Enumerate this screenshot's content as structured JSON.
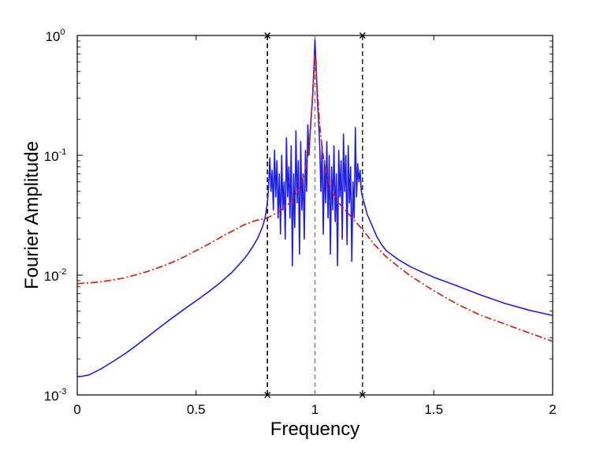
{
  "chart_data": {
    "type": "line",
    "title": "",
    "xlabel": "Frequency",
    "ylabel": "Fourier Amplitude",
    "xlim": [
      0,
      2
    ],
    "ylim": [
      0.001,
      1
    ],
    "yscale": "log",
    "grid": false,
    "legend": "none",
    "x_ticks": [
      {
        "value": 0,
        "label": "0"
      },
      {
        "value": 0.5,
        "label": "0.5"
      },
      {
        "value": 1,
        "label": "1"
      },
      {
        "value": 1.5,
        "label": "1.5"
      },
      {
        "value": 2,
        "label": "2"
      }
    ],
    "y_ticks": [
      {
        "value": 0.001,
        "base": "10",
        "exp": "-3"
      },
      {
        "value": 0.01,
        "base": "10",
        "exp": "-2"
      },
      {
        "value": 0.1,
        "base": "10",
        "exp": "-1"
      },
      {
        "value": 1,
        "base": "10",
        "exp": "0"
      }
    ],
    "series": [
      {
        "style": "solid",
        "color": "#1f1fe6",
        "x": [
          0,
          0.02,
          0.05,
          0.1,
          0.15,
          0.2,
          0.25,
          0.3,
          0.35,
          0.4,
          0.45,
          0.5,
          0.55,
          0.6,
          0.65,
          0.7,
          0.72,
          0.74,
          0.76,
          0.78,
          0.79,
          0.8,
          0.805,
          0.81,
          0.815,
          0.82,
          0.825,
          0.83,
          0.835,
          0.84,
          0.845,
          0.85,
          0.855,
          0.86,
          0.865,
          0.87,
          0.875,
          0.88,
          0.885,
          0.89,
          0.895,
          0.9,
          0.905,
          0.91,
          0.915,
          0.92,
          0.925,
          0.93,
          0.935,
          0.94,
          0.945,
          0.95,
          0.955,
          0.96,
          0.965,
          0.97,
          0.975,
          0.98,
          0.985,
          0.99,
          0.995,
          1.0,
          1.005,
          1.01,
          1.015,
          1.02,
          1.025,
          1.03,
          1.035,
          1.04,
          1.045,
          1.05,
          1.055,
          1.06,
          1.065,
          1.07,
          1.075,
          1.08,
          1.085,
          1.09,
          1.095,
          1.1,
          1.105,
          1.11,
          1.115,
          1.12,
          1.125,
          1.13,
          1.135,
          1.14,
          1.145,
          1.15,
          1.155,
          1.16,
          1.165,
          1.17,
          1.175,
          1.18,
          1.185,
          1.19,
          1.195,
          1.2,
          1.21,
          1.22,
          1.24,
          1.26,
          1.28,
          1.3,
          1.35,
          1.4,
          1.45,
          1.5,
          1.6,
          1.7,
          1.8,
          1.9,
          2.0
        ],
        "y": [
          0.00142,
          0.00143,
          0.00147,
          0.00165,
          0.0019,
          0.0022,
          0.0026,
          0.0031,
          0.0037,
          0.0044,
          0.0052,
          0.0061,
          0.0072,
          0.0086,
          0.0105,
          0.0135,
          0.0152,
          0.0175,
          0.0205,
          0.0255,
          0.03,
          0.04,
          0.055,
          0.095,
          0.05,
          0.075,
          0.035,
          0.11,
          0.045,
          0.09,
          0.03,
          0.07,
          0.022,
          0.1,
          0.035,
          0.06,
          0.02,
          0.14,
          0.045,
          0.08,
          0.03,
          0.12,
          0.012,
          0.07,
          0.025,
          0.16,
          0.04,
          0.09,
          0.015,
          0.13,
          0.035,
          0.07,
          0.02,
          0.11,
          0.05,
          0.18,
          0.1,
          0.16,
          0.22,
          0.3,
          0.5,
          0.92,
          0.55,
          0.3,
          0.2,
          0.12,
          0.05,
          0.12,
          0.022,
          0.09,
          0.04,
          0.13,
          0.03,
          0.1,
          0.015,
          0.08,
          0.035,
          0.12,
          0.028,
          0.07,
          0.012,
          0.11,
          0.045,
          0.09,
          0.02,
          0.15,
          0.05,
          0.1,
          0.018,
          0.12,
          0.04,
          0.08,
          0.013,
          0.06,
          0.03,
          0.17,
          0.045,
          0.085,
          0.06,
          0.075,
          0.05,
          0.045,
          0.038,
          0.032,
          0.026,
          0.021,
          0.018,
          0.016,
          0.0135,
          0.0118,
          0.0106,
          0.0096,
          0.0081,
          0.0068,
          0.0058,
          0.0051,
          0.0046
        ]
      },
      {
        "style": "dash-dot",
        "color": "#d6201b",
        "x": [
          0,
          0.05,
          0.1,
          0.15,
          0.2,
          0.25,
          0.3,
          0.35,
          0.4,
          0.45,
          0.5,
          0.55,
          0.6,
          0.65,
          0.7,
          0.75,
          0.8,
          0.85,
          0.9,
          0.92,
          0.94,
          0.96,
          0.97,
          0.98,
          0.99,
          1.0,
          1.01,
          1.02,
          1.03,
          1.04,
          1.06,
          1.08,
          1.1,
          1.15,
          1.2,
          1.25,
          1.3,
          1.35,
          1.4,
          1.5,
          1.6,
          1.7,
          1.8,
          1.9,
          2.0
        ],
        "y": [
          0.0085,
          0.0086,
          0.0088,
          0.0091,
          0.0095,
          0.0101,
          0.0108,
          0.0117,
          0.0128,
          0.0142,
          0.016,
          0.018,
          0.0205,
          0.0232,
          0.0262,
          0.0285,
          0.03,
          0.034,
          0.041,
          0.047,
          0.056,
          0.075,
          0.1,
          0.15,
          0.32,
          0.7,
          0.35,
          0.18,
          0.115,
          0.085,
          0.058,
          0.047,
          0.04,
          0.031,
          0.024,
          0.018,
          0.0142,
          0.0118,
          0.0099,
          0.0074,
          0.0057,
          0.0046,
          0.0039,
          0.0033,
          0.0028
        ]
      }
    ],
    "vlines": [
      {
        "x": 0.8,
        "style": "dashed",
        "color": "#000000",
        "marker": "x"
      },
      {
        "x": 1.0,
        "style": "dashed",
        "color": "#888888",
        "marker": "none"
      },
      {
        "x": 1.2,
        "style": "dashed",
        "color": "#333333",
        "marker": "x"
      }
    ]
  }
}
